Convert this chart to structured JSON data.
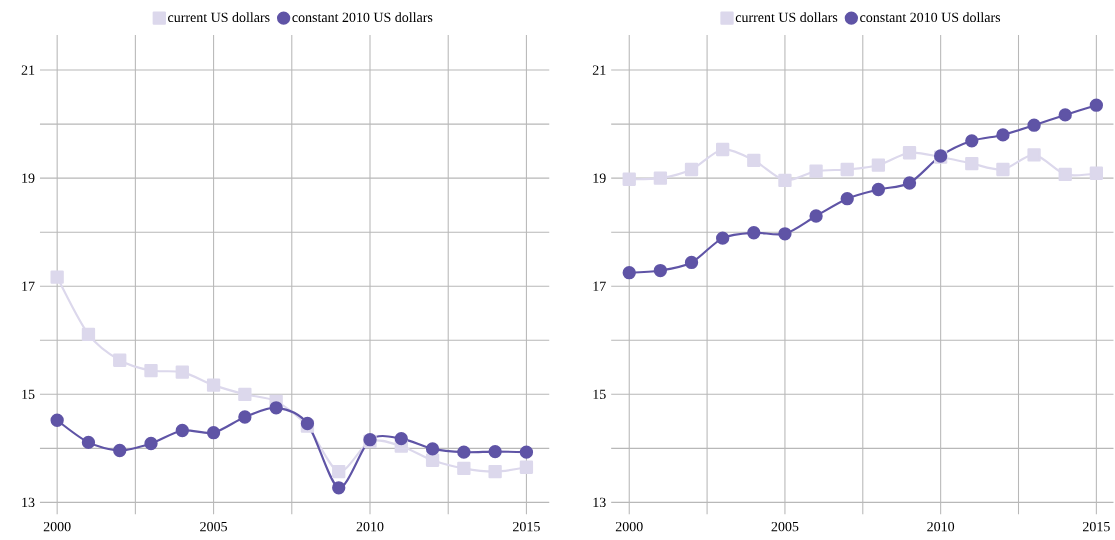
{
  "chart_data": [
    {
      "type": "line",
      "xlim": [
        1999.45,
        2015.73
      ],
      "ylim": [
        12.78,
        21.65
      ],
      "x": [
        2000,
        2001,
        2002,
        2003,
        2004,
        2005,
        2006,
        2007,
        2008,
        2009,
        2010,
        2011,
        2012,
        2013,
        2014,
        2015
      ],
      "xticks": [
        2000,
        {
          "value": 2002.5,
          "label": null
        },
        2005,
        {
          "value": 2007.5,
          "label": null
        },
        2010,
        {
          "value": 2012.5,
          "label": null
        },
        2015
      ],
      "yticks": [
        13,
        {
          "value": 14,
          "label": null
        },
        15,
        {
          "value": 16,
          "label": null
        },
        17,
        {
          "value": 18,
          "label": null
        },
        19,
        {
          "value": 20,
          "label": null
        },
        21
      ],
      "grid": true,
      "legend": "top",
      "series": [
        {
          "name": "current US dollars",
          "color": "#dcd8ec",
          "marker": "square",
          "values": [
            17.17,
            16.11,
            15.63,
            15.44,
            15.41,
            15.17,
            15.0,
            14.87,
            14.41,
            13.57,
            14.13,
            14.04,
            13.78,
            13.63,
            13.57,
            13.65
          ]
        },
        {
          "name": "constant 2010 US dollars",
          "color": "#5f54a6",
          "marker": "circle",
          "values": [
            14.52,
            14.11,
            13.96,
            14.09,
            14.33,
            14.29,
            14.58,
            14.75,
            14.46,
            13.27,
            14.16,
            14.18,
            13.99,
            13.93,
            13.94,
            13.93
          ]
        }
      ]
    },
    {
      "type": "line",
      "xlim": [
        1999.42,
        2015.55
      ],
      "ylim": [
        12.78,
        21.65
      ],
      "x": [
        2000,
        2001,
        2002,
        2003,
        2004,
        2005,
        2006,
        2007,
        2008,
        2009,
        2010,
        2011,
        2012,
        2013,
        2014,
        2015
      ],
      "xticks": [
        2000,
        {
          "value": 2002.5,
          "label": null
        },
        2005,
        {
          "value": 2007.5,
          "label": null
        },
        2010,
        {
          "value": 2012.5,
          "label": null
        },
        2015
      ],
      "yticks": [
        13,
        {
          "value": 14,
          "label": null
        },
        15,
        {
          "value": 16,
          "label": null
        },
        17,
        {
          "value": 18,
          "label": null
        },
        19,
        {
          "value": 20,
          "label": null
        },
        21
      ],
      "grid": true,
      "legend": "top",
      "series": [
        {
          "name": "current US dollars",
          "color": "#dcd8ec",
          "marker": "square",
          "values": [
            18.98,
            19.0,
            19.16,
            19.53,
            19.33,
            18.96,
            19.13,
            19.16,
            19.24,
            19.47,
            19.39,
            19.27,
            19.16,
            19.43,
            19.07,
            19.09
          ]
        },
        {
          "name": "constant 2010 US dollars",
          "color": "#5f54a6",
          "marker": "circle",
          "values": [
            17.25,
            17.29,
            17.44,
            17.89,
            17.99,
            17.97,
            18.3,
            18.62,
            18.79,
            18.91,
            19.41,
            19.69,
            19.8,
            19.98,
            20.17,
            20.35
          ]
        }
      ]
    }
  ]
}
